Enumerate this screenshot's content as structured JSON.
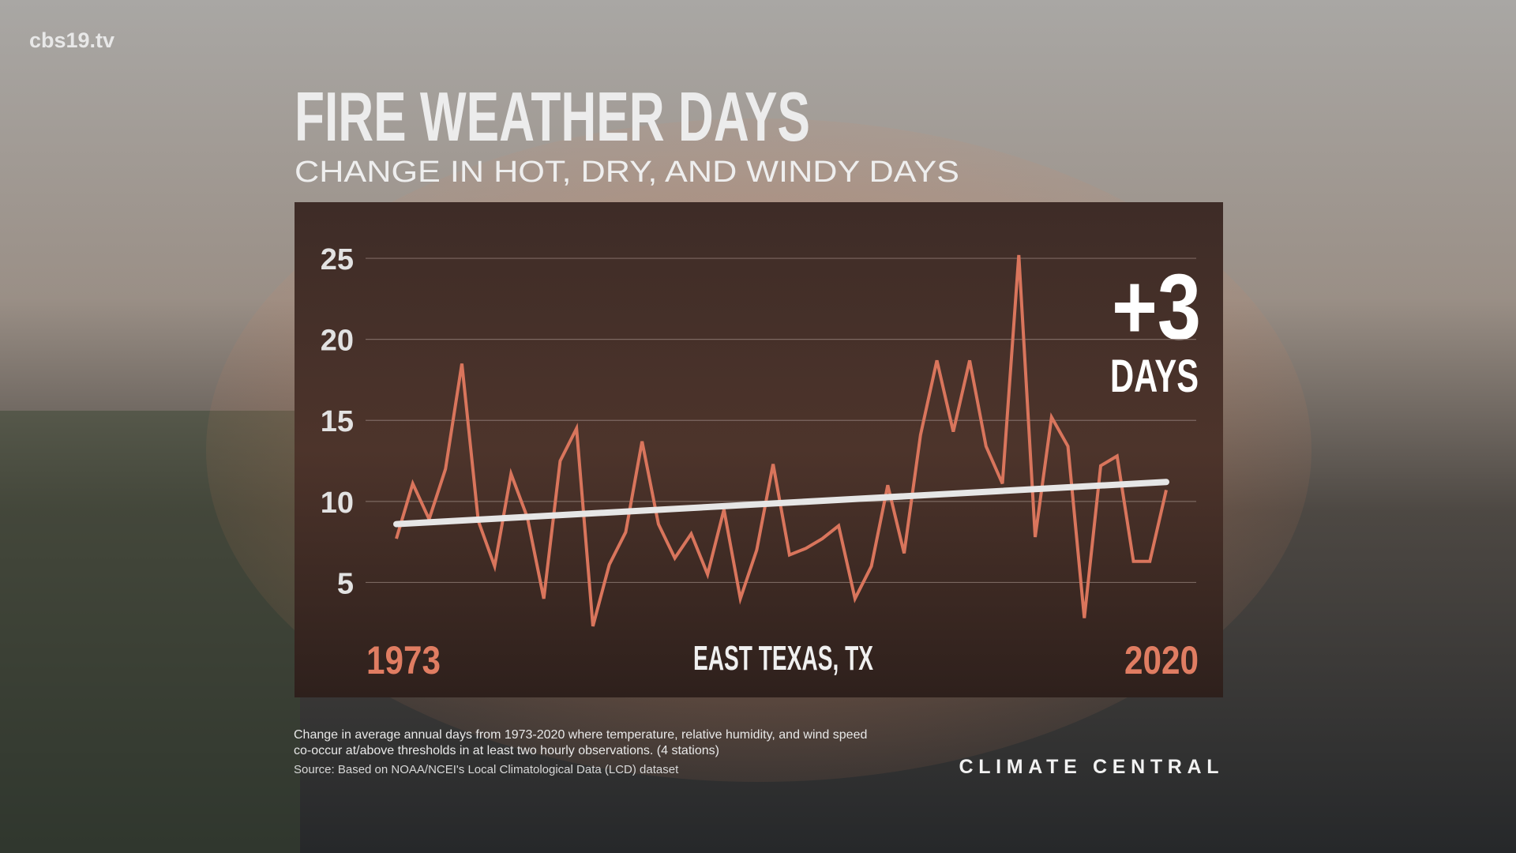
{
  "watermark": "cbs19.tv",
  "chart_data": {
    "type": "line",
    "title": "FIRE WEATHER DAYS",
    "subtitle": "CHANGE IN HOT, DRY, AND WINDY DAYS",
    "annotation": "+3",
    "annotation_unit": "DAYS",
    "location": "EAST TEXAS, TX",
    "x": [
      1973,
      1974,
      1975,
      1976,
      1977,
      1978,
      1979,
      1980,
      1981,
      1982,
      1983,
      1984,
      1985,
      1986,
      1987,
      1988,
      1989,
      1990,
      1991,
      1992,
      1993,
      1994,
      1995,
      1996,
      1997,
      1998,
      1999,
      2000,
      2001,
      2002,
      2003,
      2004,
      2005,
      2006,
      2007,
      2008,
      2009,
      2010,
      2011,
      2012,
      2013,
      2014,
      2015,
      2016,
      2017,
      2018,
      2019,
      2020
    ],
    "series": [
      {
        "name": "Fire weather days",
        "color": "#d9755c",
        "values": [
          7.7,
          11.1,
          8.9,
          12.0,
          18.5,
          8.8,
          6.0,
          11.7,
          9.0,
          4.0,
          12.5,
          14.5,
          2.3,
          6.1,
          8.1,
          13.7,
          8.6,
          6.5,
          8.0,
          5.5,
          9.5,
          4.0,
          7.0,
          12.3,
          6.7,
          7.1,
          7.7,
          8.5,
          4.0,
          6.0,
          11.0,
          6.8,
          14.1,
          18.7,
          14.3,
          18.7,
          13.4,
          11.1,
          25.2,
          7.8,
          15.2,
          13.4,
          2.8,
          12.2,
          12.8,
          6.3,
          6.3,
          10.7
        ]
      }
    ],
    "trend": {
      "x": [
        1973,
        2020
      ],
      "values": [
        8.6,
        11.2
      ],
      "color": "#e6e6e6"
    },
    "xlim": [
      1973,
      2020
    ],
    "xticks": [
      1973,
      2020
    ],
    "ylim": [
      2,
      27
    ],
    "yticks": [
      5,
      10,
      15,
      20,
      25
    ],
    "grid": true
  },
  "notes": [
    "Change in average annual days from 1973-2020 where temperature, relative humidity, and wind speed",
    "co-occur at/above thresholds in at least two hourly observations.  (4 stations)"
  ],
  "source": "Source: Based on NOAA/NCEI's Local Climatological Data (LCD) dataset",
  "logo": "CLIMATE CENTRAL"
}
